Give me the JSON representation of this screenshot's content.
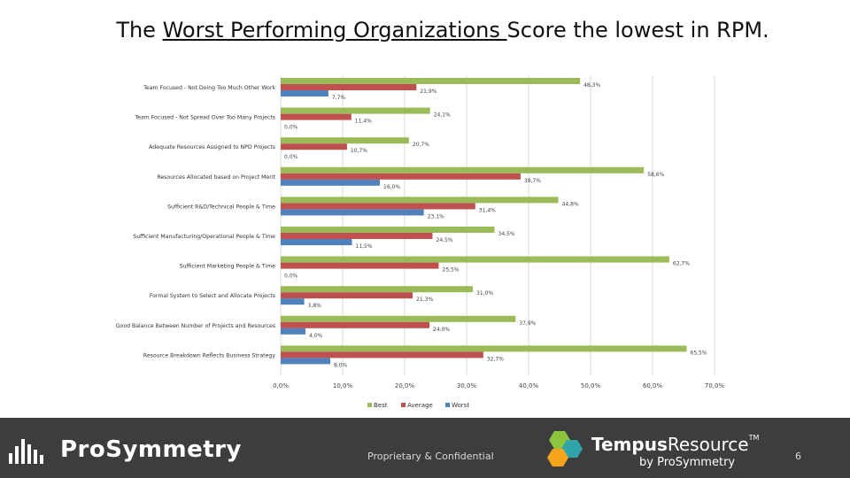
{
  "title": {
    "part1": "The ",
    "underlined": "Worst Performing Organizations ",
    "part2": "Score the lowest in RPM."
  },
  "chart_data": {
    "type": "bar",
    "orientation": "horizontal",
    "categories": [
      "Team Focused - Not Doing Too Much Other Work",
      "Team Focused - Not Spread Over Too Many Projects",
      "Adequate Resources Assigned to NPD Projects",
      "Resources Allocated based on Project Merit",
      "Sufficient R&D/Technical People & Time",
      "Sufficient Manufacturing/Operational People & Time",
      "Sufficient Marketing People & Time",
      "Formal System to Select and Allocate Projects",
      "Good Balance Between Number of Projects and Resources",
      "Resource Breakdown Reflects Business Strategy"
    ],
    "series": [
      {
        "name": "Best",
        "color": "#9bbb59",
        "values": [
          48.3,
          24.1,
          20.7,
          58.6,
          44.8,
          34.5,
          62.7,
          31.0,
          37.9,
          65.5
        ],
        "labels": [
          "48,3%",
          "24,1%",
          "20,7%",
          "58,6%",
          "44,8%",
          "34,5%",
          "62,7%",
          "31,0%",
          "37,9%",
          "65,5%"
        ]
      },
      {
        "name": "Average",
        "color": "#c0504d",
        "values": [
          21.9,
          11.4,
          10.7,
          38.7,
          31.4,
          24.5,
          25.5,
          21.3,
          24.0,
          32.7
        ],
        "labels": [
          "21,9%",
          "11,4%",
          "10,7%",
          "38,7%",
          "31,4%",
          "24,5%",
          "25,5%",
          "21,3%",
          "24,0%",
          "32,7%"
        ]
      },
      {
        "name": "Worst",
        "color": "#4f81bd",
        "values": [
          7.7,
          0.0,
          0.0,
          16.0,
          23.1,
          11.5,
          0.0,
          3.8,
          4.0,
          8.0
        ],
        "labels": [
          "7,7%",
          "0,0%",
          "0,0%",
          "16,0%",
          "23,1%",
          "11,5%",
          "0,0%",
          "3,8%",
          "4,0%",
          "8,0%"
        ]
      }
    ],
    "xlim": [
      0,
      70
    ],
    "xticks": [
      "0,0%",
      "10,0%",
      "20,0%",
      "30,0%",
      "40,0%",
      "50,0%",
      "60,0%",
      "70,0%"
    ],
    "grid": true,
    "legend": "bottom"
  },
  "footer": {
    "brand": "ProSymmetry",
    "confidential": "Proprietary & Confidential",
    "tempus_name_part1": "Tempus",
    "tempus_name_part2": "Resource",
    "tempus_tm": "TM",
    "tempus_by": "by ProSymmetry",
    "page_number": "6",
    "bar_color": "#3d3d3d"
  }
}
